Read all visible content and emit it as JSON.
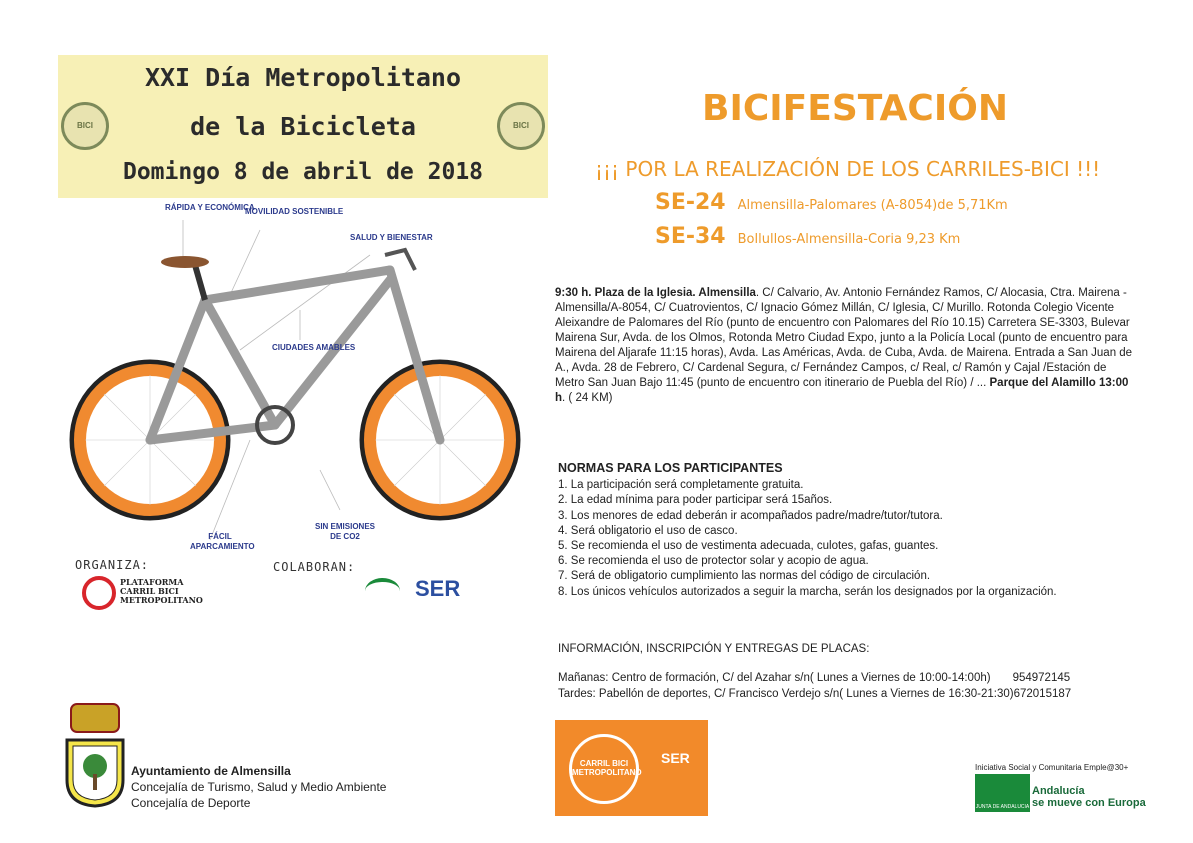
{
  "poster_header": {
    "line1": "XXI Día Metropolitano",
    "line2": "de la Bicicleta",
    "date": "Domingo 8 de abril de 2018",
    "seal_text": "CARRIL BICI METROPOLITANO"
  },
  "bike_labels": [
    "RÁPIDA Y ECONÓMICA",
    "MOVILIDAD SOSTENIBLE",
    "SALUD Y BIENESTAR",
    "CIUDADES AMABLES",
    "FÁCIL APARCAMIENTO",
    "SIN EMISIONES DE CO2"
  ],
  "organiza": {
    "label": "ORGANIZA:",
    "org": "PLATAFORMA CARRIL BICI METROPOLITANO"
  },
  "colaboran": {
    "label": "COLABORAN:",
    "ser": "SER"
  },
  "headline": "BICIFESTACIÓN",
  "slogan": "¡¡¡ POR LA REALIZACIÓN DE LOS CARRILES-BICI !!!",
  "roads": [
    {
      "code": "SE-24",
      "desc": "Almensilla-Palomares (A-8054)de 5,71Km"
    },
    {
      "code": "SE-34",
      "desc": "Bollullos-Almensilla-Coria 9,23 Km"
    }
  ],
  "route": {
    "start_bold": "9:30 h. Plaza de la Iglesia. Almensilla",
    "body": ". C/ Calvario, Av. Antonio Fernández Ramos, C/ Alocasia, Ctra. Mairena - Almensilla/A-8054,  C/ Cuatrovientos, C/ Ignacio Gómez Millán, C/ Iglesia, C/ Murillo. Rotonda Colegio Vicente Aleixandre de Palomares del Río (punto de encuentro con Palomares del Río 10.15) Carretera SE-3303, Bulevar Mairena Sur, Avda. de los Olmos, Rotonda Metro Ciudad Expo, junto a la Policía Local (punto de encuentro para Mairena del Aljarafe 11:15 horas), Avda. Las Américas, Avda. de Cuba, Avda. de Mairena. Entrada a San Juan de A., Avda. 28 de Febrero, C/ Cardenal Segura, c/ Fernández Campos, c/ Real, c/ Ramón y Cajal /Estación de Metro San Juan Bajo 11:45 (punto de encuentro con itinerario de Puebla del Río) / ... ",
    "end_bold": "Parque del Alamillo 13:00 h",
    "distance": ".    ( 24 KM)"
  },
  "normas": {
    "title": "NORMAS PARA LOS PARTICIPANTES",
    "items": [
      "1. La participación será completamente gratuita.",
      "2. La edad mínima para poder participar será 15años.",
      "3. Los menores de edad deberán ir acompañados padre/madre/tutor/tutora.",
      "4. Será obligatorio el uso de casco.",
      "5. Se recomienda el uso de vestimenta adecuada, culotes, gafas, guantes.",
      "6. Se recomienda el uso de protector solar y acopio de agua.",
      "7. Será de obligatorio cumplimiento las normas del código de circulación.",
      "8. Los únicos vehículos autorizados a seguir la marcha, serán los designados por la organización."
    ]
  },
  "info": {
    "title": "INFORMACIÓN, INSCRIPCIÓN Y ENTREGAS DE PLACAS:",
    "morning": "Mañanas: Centro de formación, C/ del Azahar s/n( Lunes a Viernes de 10:00-14:00h)",
    "morning_phone": "954972145",
    "afternoon": "Tardes: Pabellón de deportes, C/ Francisco Verdejo s/n( Lunes a Viernes de 16:30-21:30)672015187"
  },
  "footer": {
    "ayto": "Ayuntamiento de Almensilla",
    "concejalia1": "Concejalía de Turismo, Salud y Medio Ambiente",
    "concejalia2": "Concejalía de Deporte",
    "badge_text": "CARRIL BICI METROPOLITANO",
    "junta_top": "Iniciativa Social y Comunitaria Emple@30+",
    "junta_name": "JUNTA DE ANDALUCIA",
    "andalucia": "Andalucía",
    "andalucia2": "se mueve con Europa"
  },
  "colors": {
    "orange": "#ee9b2b",
    "label_blue": "#2b3a8c",
    "title_bg": "#f7f0b6",
    "badge": "#f28a2a",
    "junta_green": "#1a8a3a"
  }
}
